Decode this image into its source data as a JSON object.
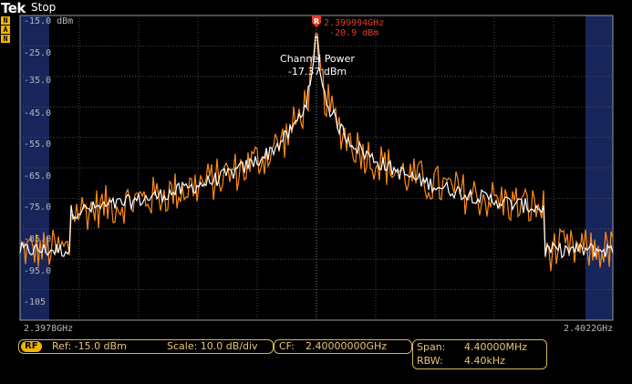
{
  "header": {
    "brand_bold": "Tek",
    "status": "Stop"
  },
  "mode_badges": [
    "N",
    "A",
    "N"
  ],
  "marker": {
    "symbol": "R",
    "frequency": "2.399994GHz",
    "level": "-20.9 dBm"
  },
  "channel_power": {
    "label": "Channel Power",
    "value": "-17.37 dBm"
  },
  "y_axis_labels": [
    "-15.0 dBm",
    "-25.0",
    "-35.0",
    "-45.0",
    "-55.0",
    "-65.0",
    "-75.0",
    "-85.0",
    "-95.0",
    "-105"
  ],
  "x_axis": {
    "start": "2.3978GHz",
    "stop": "2.4022GHz"
  },
  "bottom": {
    "rf_badge": "RF",
    "ref": "Ref: -15.0 dBm",
    "scale": "Scale: 10.0 dB/div",
    "cf_label": "CF:",
    "cf_value": "2.40000000GHz",
    "span_label": "Span:",
    "span_value": "4.40000MHz",
    "rbw_label": "RBW:",
    "rbw_value": "4.40kHz"
  },
  "colors": {
    "trace_live": "#ff8a14",
    "trace_avg": "#ffffff",
    "marker": "#e03a2a",
    "edge_band": "#17255a",
    "accent": "#d7b25a"
  }
}
